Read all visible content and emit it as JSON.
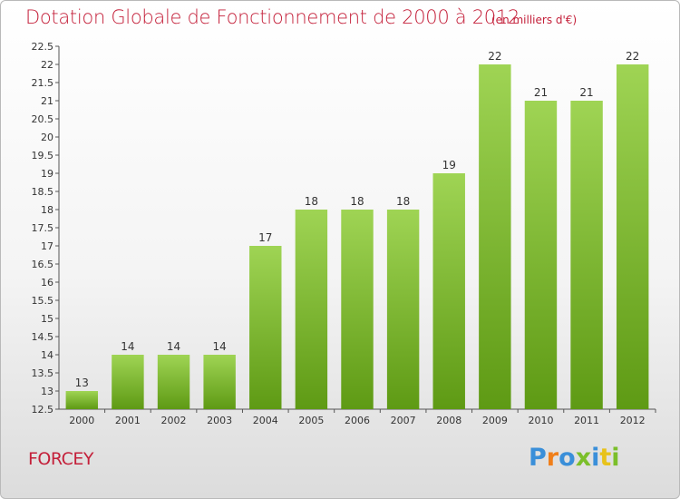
{
  "title": "Dotation Globale de Fonctionnement de 2000 à 2012",
  "subtitle": "(en milliers d'€)",
  "commune": "FORCEY",
  "logo": {
    "text": "Proxiti",
    "colors": [
      "#3a8fd9",
      "#f07f1a",
      "#3a8fd9",
      "#7bbf2a",
      "#3a8fd9",
      "#e8c21a",
      "#7bbf2a"
    ]
  },
  "colors": {
    "accent": "#c4203a",
    "bar_top": "#9fd454",
    "bar_bottom": "#5e9a14"
  },
  "chart_data": {
    "type": "bar",
    "categories": [
      "2000",
      "2001",
      "2002",
      "2003",
      "2004",
      "2005",
      "2006",
      "2007",
      "2008",
      "2009",
      "2010",
      "2011",
      "2012"
    ],
    "values": [
      13,
      14,
      14,
      14,
      17,
      18,
      18,
      18,
      19,
      22,
      21,
      21,
      22
    ],
    "ylim": [
      12.5,
      22.5
    ],
    "yticks": [
      "12.5",
      "13",
      "13.5",
      "14",
      "14.5",
      "15",
      "15.5",
      "16",
      "16.5",
      "17",
      "17.5",
      "18",
      "18.5",
      "19",
      "19.5",
      "20",
      "20.5",
      "21",
      "21.5",
      "22",
      "22.5"
    ],
    "grid": false,
    "xlabel": "",
    "ylabel": ""
  }
}
